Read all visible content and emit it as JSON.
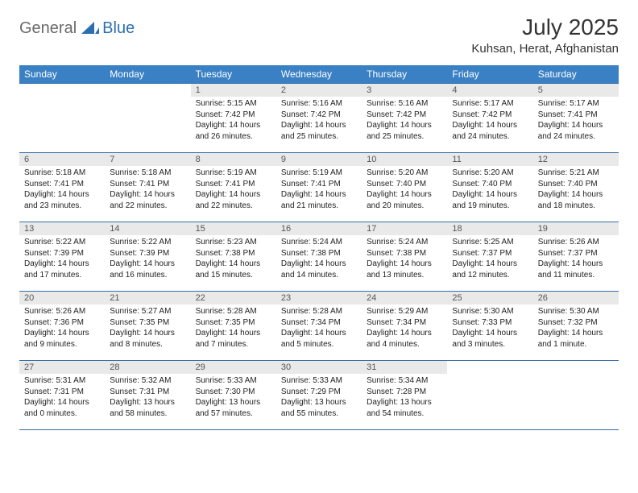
{
  "brand": {
    "part1": "General",
    "part2": "Blue"
  },
  "title": "July 2025",
  "location": "Kuhsan, Herat, Afghanistan",
  "colors": {
    "header_bg": "#3a80c4",
    "header_text": "#ffffff",
    "daynum_bg": "#e9e9e9",
    "daynum_text": "#555555",
    "rule": "#3a6ea5",
    "logo_gray": "#6a6a6a",
    "logo_blue": "#2b6fb0"
  },
  "day_labels": [
    "Sunday",
    "Monday",
    "Tuesday",
    "Wednesday",
    "Thursday",
    "Friday",
    "Saturday"
  ],
  "weeks": [
    [
      null,
      null,
      {
        "n": "1",
        "sr": "5:15 AM",
        "ss": "7:42 PM",
        "dl": "14 hours and 26 minutes."
      },
      {
        "n": "2",
        "sr": "5:16 AM",
        "ss": "7:42 PM",
        "dl": "14 hours and 25 minutes."
      },
      {
        "n": "3",
        "sr": "5:16 AM",
        "ss": "7:42 PM",
        "dl": "14 hours and 25 minutes."
      },
      {
        "n": "4",
        "sr": "5:17 AM",
        "ss": "7:42 PM",
        "dl": "14 hours and 24 minutes."
      },
      {
        "n": "5",
        "sr": "5:17 AM",
        "ss": "7:41 PM",
        "dl": "14 hours and 24 minutes."
      }
    ],
    [
      {
        "n": "6",
        "sr": "5:18 AM",
        "ss": "7:41 PM",
        "dl": "14 hours and 23 minutes."
      },
      {
        "n": "7",
        "sr": "5:18 AM",
        "ss": "7:41 PM",
        "dl": "14 hours and 22 minutes."
      },
      {
        "n": "8",
        "sr": "5:19 AM",
        "ss": "7:41 PM",
        "dl": "14 hours and 22 minutes."
      },
      {
        "n": "9",
        "sr": "5:19 AM",
        "ss": "7:41 PM",
        "dl": "14 hours and 21 minutes."
      },
      {
        "n": "10",
        "sr": "5:20 AM",
        "ss": "7:40 PM",
        "dl": "14 hours and 20 minutes."
      },
      {
        "n": "11",
        "sr": "5:20 AM",
        "ss": "7:40 PM",
        "dl": "14 hours and 19 minutes."
      },
      {
        "n": "12",
        "sr": "5:21 AM",
        "ss": "7:40 PM",
        "dl": "14 hours and 18 minutes."
      }
    ],
    [
      {
        "n": "13",
        "sr": "5:22 AM",
        "ss": "7:39 PM",
        "dl": "14 hours and 17 minutes."
      },
      {
        "n": "14",
        "sr": "5:22 AM",
        "ss": "7:39 PM",
        "dl": "14 hours and 16 minutes."
      },
      {
        "n": "15",
        "sr": "5:23 AM",
        "ss": "7:38 PM",
        "dl": "14 hours and 15 minutes."
      },
      {
        "n": "16",
        "sr": "5:24 AM",
        "ss": "7:38 PM",
        "dl": "14 hours and 14 minutes."
      },
      {
        "n": "17",
        "sr": "5:24 AM",
        "ss": "7:38 PM",
        "dl": "14 hours and 13 minutes."
      },
      {
        "n": "18",
        "sr": "5:25 AM",
        "ss": "7:37 PM",
        "dl": "14 hours and 12 minutes."
      },
      {
        "n": "19",
        "sr": "5:26 AM",
        "ss": "7:37 PM",
        "dl": "14 hours and 11 minutes."
      }
    ],
    [
      {
        "n": "20",
        "sr": "5:26 AM",
        "ss": "7:36 PM",
        "dl": "14 hours and 9 minutes."
      },
      {
        "n": "21",
        "sr": "5:27 AM",
        "ss": "7:35 PM",
        "dl": "14 hours and 8 minutes."
      },
      {
        "n": "22",
        "sr": "5:28 AM",
        "ss": "7:35 PM",
        "dl": "14 hours and 7 minutes."
      },
      {
        "n": "23",
        "sr": "5:28 AM",
        "ss": "7:34 PM",
        "dl": "14 hours and 5 minutes."
      },
      {
        "n": "24",
        "sr": "5:29 AM",
        "ss": "7:34 PM",
        "dl": "14 hours and 4 minutes."
      },
      {
        "n": "25",
        "sr": "5:30 AM",
        "ss": "7:33 PM",
        "dl": "14 hours and 3 minutes."
      },
      {
        "n": "26",
        "sr": "5:30 AM",
        "ss": "7:32 PM",
        "dl": "14 hours and 1 minute."
      }
    ],
    [
      {
        "n": "27",
        "sr": "5:31 AM",
        "ss": "7:31 PM",
        "dl": "14 hours and 0 minutes."
      },
      {
        "n": "28",
        "sr": "5:32 AM",
        "ss": "7:31 PM",
        "dl": "13 hours and 58 minutes."
      },
      {
        "n": "29",
        "sr": "5:33 AM",
        "ss": "7:30 PM",
        "dl": "13 hours and 57 minutes."
      },
      {
        "n": "30",
        "sr": "5:33 AM",
        "ss": "7:29 PM",
        "dl": "13 hours and 55 minutes."
      },
      {
        "n": "31",
        "sr": "5:34 AM",
        "ss": "7:28 PM",
        "dl": "13 hours and 54 minutes."
      },
      null,
      null
    ]
  ],
  "labels": {
    "sunrise": "Sunrise: ",
    "sunset": "Sunset: ",
    "daylight": "Daylight: "
  }
}
